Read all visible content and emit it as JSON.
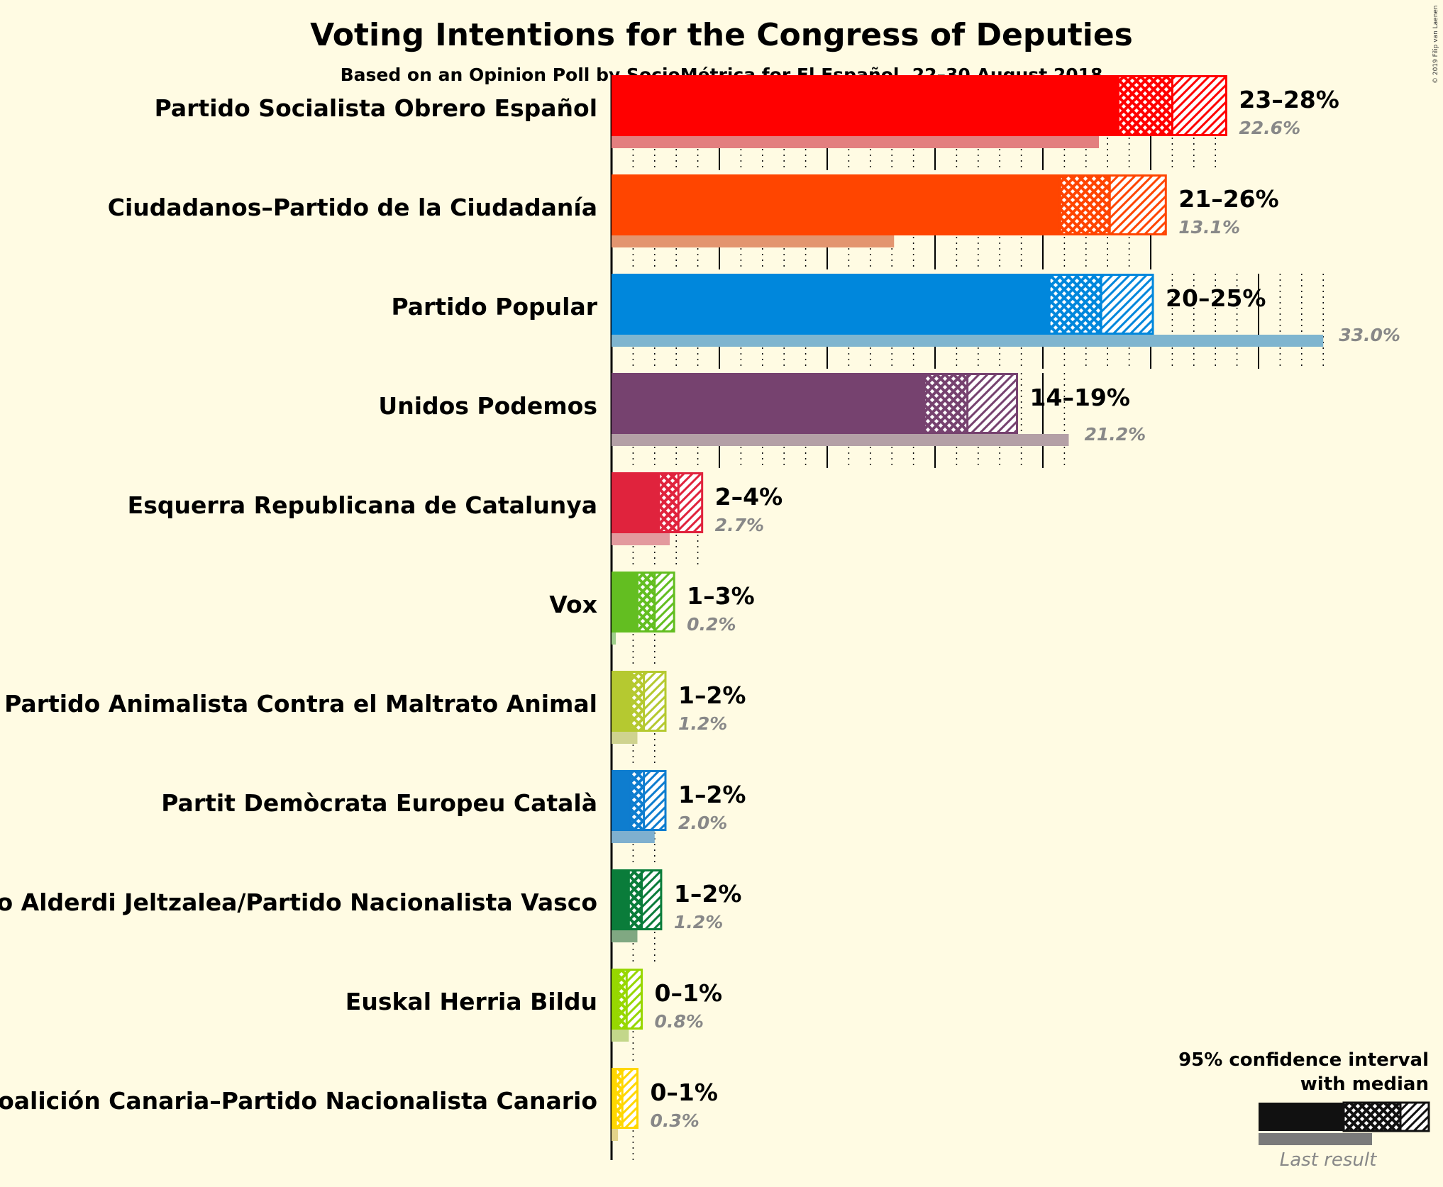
{
  "title": "Voting Intentions for the Congress of Deputies",
  "subtitle": "Based on an Opinion Poll by SocioMétrica for El Español, 22–30 August 2018",
  "copyright": "© 2019 Filip van Laenen",
  "legend": {
    "ci_line1": "95% confidence interval",
    "ci_line2": "with median",
    "last_result": "Last result"
  },
  "chart_data": {
    "type": "bar",
    "orientation": "horizontal",
    "unit": "%",
    "categories": [
      "Partido Socialista Obrero Español",
      "Ciudadanos–Partido de la Ciudadanía",
      "Partido Popular",
      "Unidos Podemos",
      "Esquerra Republicana de Catalunya",
      "Vox",
      "Partido Animalista Contra el Maltrato Animal",
      "Partit Demòcrata Europeu Català",
      "Euzko Alderdi Jeltzalea/Partido Nacionalista Vasco",
      "Euskal Herria Bildu",
      "Coalición Canaria–Partido Nacionalista Canario"
    ],
    "parties": [
      {
        "name": "Partido Socialista Obrero Español",
        "color": "#ff0000",
        "last_color": "#e37f7f",
        "ci_low": 23.5,
        "median": 26.0,
        "ci_high": 28.5,
        "range_label": "23–28%",
        "last": 22.6,
        "last_label": "22.6%"
      },
      {
        "name": "Ciudadanos–Partido de la Ciudadanía",
        "color": "#ff4500",
        "last_color": "#e3956f",
        "ci_low": 20.8,
        "median": 23.1,
        "ci_high": 25.7,
        "range_label": "21–26%",
        "last": 13.1,
        "last_label": "13.1%"
      },
      {
        "name": "Partido Popular",
        "color": "#0087dc",
        "last_color": "#7fb5cf",
        "ci_low": 20.3,
        "median": 22.7,
        "ci_high": 25.1,
        "range_label": "20–25%",
        "last": 33.0,
        "last_label": "33.0%"
      },
      {
        "name": "Unidos Podemos",
        "color": "#76426f",
        "last_color": "#b4a0a6",
        "ci_low": 14.5,
        "median": 16.5,
        "ci_high": 18.8,
        "range_label": "14–19%",
        "last": 21.2,
        "last_label": "21.2%"
      },
      {
        "name": "Esquerra Republicana de Catalunya",
        "color": "#e0233d",
        "last_color": "#e39a9e",
        "ci_low": 2.2,
        "median": 3.1,
        "ci_high": 4.2,
        "range_label": "2–4%",
        "last": 2.7,
        "last_label": "2.7%"
      },
      {
        "name": "Vox",
        "color": "#63be21",
        "last_color": "#9fd08a",
        "ci_low": 1.2,
        "median": 2.0,
        "ci_high": 2.9,
        "range_label": "1–3%",
        "last": 0.2,
        "last_label": "0.2%"
      },
      {
        "name": "Partido Animalista Contra el Maltrato Animal",
        "color": "#b5c930",
        "last_color": "#cfd38f",
        "ci_low": 0.9,
        "median": 1.5,
        "ci_high": 2.5,
        "range_label": "1–2%",
        "last": 1.2,
        "last_label": "1.2%"
      },
      {
        "name": "Partit Demòcrata Europeu Català",
        "color": "#0e7dcf",
        "last_color": "#7fb0cf",
        "ci_low": 0.9,
        "median": 1.5,
        "ci_high": 2.5,
        "range_label": "1–2%",
        "last": 2.0,
        "last_label": "2.0%"
      },
      {
        "name": "Euzko Alderdi Jeltzalea/Partido Nacionalista Vasco",
        "color": "#0a7c3a",
        "last_color": "#80a882",
        "ci_low": 0.8,
        "median": 1.4,
        "ci_high": 2.3,
        "range_label": "1–2%",
        "last": 1.2,
        "last_label": "1.2%"
      },
      {
        "name": "Euskal Herria Bildu",
        "color": "#97d700",
        "last_color": "#c3d78a",
        "ci_low": 0.3,
        "median": 0.7,
        "ci_high": 1.4,
        "range_label": "0–1%",
        "last": 0.8,
        "last_label": "0.8%"
      },
      {
        "name": "Coalición Canaria–Partido Nacionalista Canario",
        "color": "#ffd700",
        "last_color": "#e3d38a",
        "ci_low": 0.2,
        "median": 0.5,
        "ci_high": 1.2,
        "range_label": "0–1%",
        "last": 0.3,
        "last_label": "0.3%"
      }
    ],
    "xlim": [
      0,
      33
    ],
    "major_gridlines_every": 5,
    "minor_gridlines_every": 1,
    "grid": true,
    "legend_position": "bottom-right"
  }
}
